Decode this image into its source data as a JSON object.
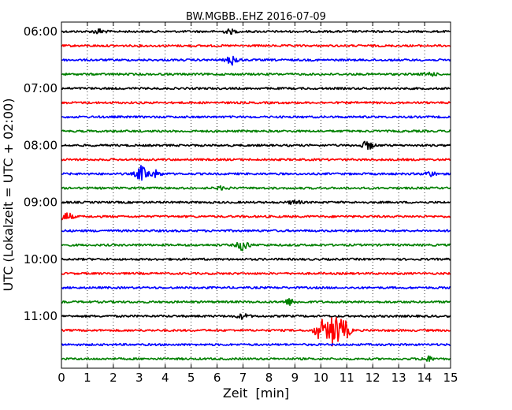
{
  "chart_data": {
    "type": "line",
    "title": "BW.MGBB..EHZ 2016-07-09",
    "xlabel": "Zeit  [min]",
    "ylabel": "UTC (Lokalzeit = UTC + 02:00)",
    "xlim": [
      0,
      15
    ],
    "x_ticks": [
      "0",
      "1",
      "2",
      "3",
      "4",
      "5",
      "6",
      "7",
      "8",
      "9",
      "10",
      "11",
      "12",
      "13",
      "14",
      "15"
    ],
    "grid": "vertical dotted lines at each minute",
    "y_tick_labels": [
      "06:00",
      "07:00",
      "08:00",
      "09:00",
      "10:00",
      "11:00"
    ],
    "trace_colors": [
      "#000000",
      "#ff0000",
      "#0000ff",
      "#008000"
    ],
    "traces": [
      {
        "start": "06:00",
        "color": "#000000",
        "events": [
          {
            "min": 1.45,
            "amp": 0.5
          },
          {
            "min": 6.5,
            "amp": 0.4
          }
        ]
      },
      {
        "start": "06:15",
        "color": "#ff0000",
        "events": []
      },
      {
        "start": "06:30",
        "color": "#0000ff",
        "events": [
          {
            "min": 6.6,
            "amp": 1.0
          }
        ]
      },
      {
        "start": "06:45",
        "color": "#008000",
        "events": [
          {
            "min": 14.2,
            "amp": 0.4
          }
        ]
      },
      {
        "start": "07:00",
        "color": "#000000",
        "events": []
      },
      {
        "start": "07:15",
        "color": "#ff0000",
        "events": []
      },
      {
        "start": "07:30",
        "color": "#0000ff",
        "events": []
      },
      {
        "start": "07:45",
        "color": "#008000",
        "events": []
      },
      {
        "start": "08:00",
        "color": "#000000",
        "events": [
          {
            "min": 11.8,
            "amp": 0.8
          }
        ]
      },
      {
        "start": "08:15",
        "color": "#ff0000",
        "events": []
      },
      {
        "start": "08:30",
        "color": "#0000ff",
        "events": [
          {
            "min": 3.1,
            "amp": 1.6
          },
          {
            "min": 3.6,
            "amp": 0.7
          },
          {
            "min": 14.2,
            "amp": 0.5
          }
        ]
      },
      {
        "start": "08:45",
        "color": "#008000",
        "events": [
          {
            "min": 6.2,
            "amp": 0.3
          }
        ]
      },
      {
        "start": "09:00",
        "color": "#000000",
        "events": [
          {
            "min": 9.0,
            "amp": 0.4
          }
        ]
      },
      {
        "start": "09:15",
        "color": "#ff0000",
        "events": [
          {
            "min": 0.2,
            "amp": 0.8
          }
        ]
      },
      {
        "start": "09:30",
        "color": "#0000ff",
        "events": []
      },
      {
        "start": "09:45",
        "color": "#008000",
        "events": [
          {
            "min": 7.0,
            "amp": 1.1
          }
        ]
      },
      {
        "start": "10:00",
        "color": "#000000",
        "events": []
      },
      {
        "start": "10:15",
        "color": "#ff0000",
        "events": []
      },
      {
        "start": "10:30",
        "color": "#0000ff",
        "events": []
      },
      {
        "start": "10:45",
        "color": "#008000",
        "events": [
          {
            "min": 8.8,
            "amp": 0.6
          }
        ]
      },
      {
        "start": "11:00",
        "color": "#000000",
        "events": [
          {
            "min": 7.0,
            "amp": 0.5
          }
        ]
      },
      {
        "start": "11:15",
        "color": "#ff0000",
        "events": [
          {
            "min": 10.0,
            "amp": 2.2
          },
          {
            "min": 10.5,
            "amp": 3.5
          },
          {
            "min": 10.9,
            "amp": 2.0
          }
        ]
      },
      {
        "start": "11:30",
        "color": "#0000ff",
        "events": []
      },
      {
        "start": "11:45",
        "color": "#008000",
        "events": [
          {
            "min": 14.1,
            "amp": 0.5
          }
        ]
      }
    ]
  }
}
